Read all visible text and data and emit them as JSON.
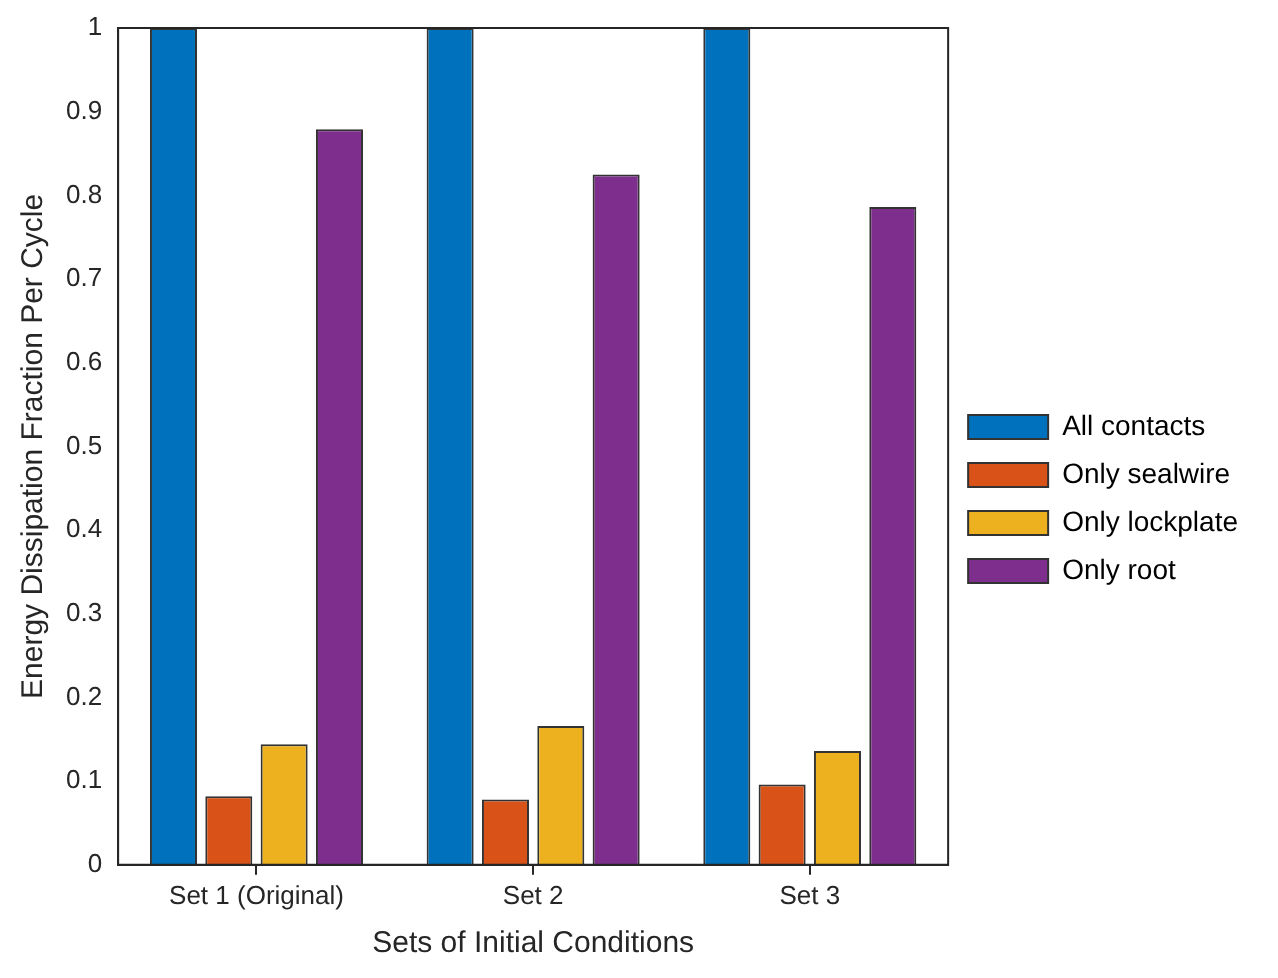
{
  "chart_data": {
    "type": "bar",
    "xlabel": "Sets of Initial Conditions",
    "ylabel": "Energy Dissipation Fraction Per Cycle",
    "categories": [
      "Set 1 (Original)",
      "Set 2",
      "Set 3"
    ],
    "series": [
      {
        "name": "All contacts",
        "color": "#0072bd",
        "values": [
          1,
          1,
          1
        ]
      },
      {
        "name": "Only sealwire",
        "color": "#d95319",
        "values": [
          0.082,
          0.078,
          0.096
        ]
      },
      {
        "name": "Only lockplate",
        "color": "#edb120",
        "values": [
          0.144,
          0.166,
          0.136
        ]
      },
      {
        "name": "Only root",
        "color": "#7e2f8e",
        "values": [
          0.879,
          0.825,
          0.786
        ]
      }
    ],
    "ylim": [
      0,
      1
    ],
    "yticks": [
      0,
      0.1,
      0.2,
      0.3,
      0.4,
      0.5,
      0.6,
      0.7,
      0.8,
      0.9,
      1
    ],
    "grid": false,
    "legend": "right"
  }
}
